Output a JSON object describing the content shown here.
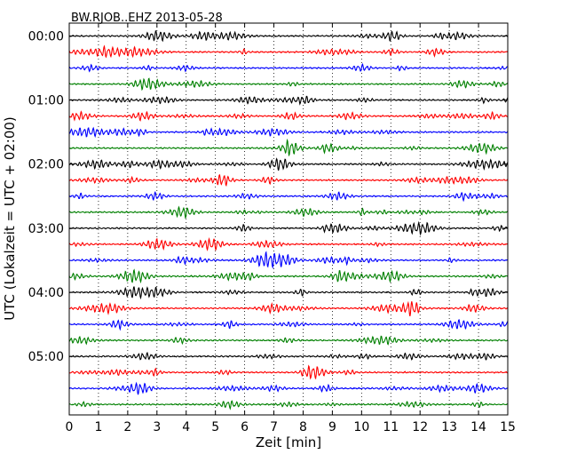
{
  "chart_data": {
    "type": "line",
    "title": "BW.RJOB..EHZ 2013-05-28",
    "xlabel": "Zeit  [min]",
    "ylabel": "UTC (Lokalzeit = UTC + 02:00)",
    "xlim": [
      0,
      15
    ],
    "x_ticks": [
      "0",
      "1",
      "2",
      "3",
      "4",
      "5",
      "6",
      "7",
      "8",
      "9",
      "10",
      "11",
      "12",
      "13",
      "14",
      "15"
    ],
    "hour_labels": [
      "00:00",
      "01:00",
      "02:00",
      "03:00",
      "04:00",
      "05:00"
    ],
    "traces_per_hour": 4,
    "trace_colors": [
      "#000000",
      "#ff0000",
      "#0000ff",
      "#008000"
    ],
    "grid": "vertical-dotted",
    "traces": [
      {
        "start": "00:00",
        "color": "#000000"
      },
      {
        "start": "00:15",
        "color": "#ff0000"
      },
      {
        "start": "00:30",
        "color": "#0000ff"
      },
      {
        "start": "00:45",
        "color": "#008000"
      },
      {
        "start": "01:00",
        "color": "#000000"
      },
      {
        "start": "01:15",
        "color": "#ff0000"
      },
      {
        "start": "01:30",
        "color": "#0000ff"
      },
      {
        "start": "01:45",
        "color": "#008000"
      },
      {
        "start": "02:00",
        "color": "#000000"
      },
      {
        "start": "02:15",
        "color": "#ff0000"
      },
      {
        "start": "02:30",
        "color": "#0000ff"
      },
      {
        "start": "02:45",
        "color": "#008000"
      },
      {
        "start": "03:00",
        "color": "#000000"
      },
      {
        "start": "03:15",
        "color": "#ff0000"
      },
      {
        "start": "03:30",
        "color": "#0000ff"
      },
      {
        "start": "03:45",
        "color": "#008000"
      },
      {
        "start": "04:00",
        "color": "#000000"
      },
      {
        "start": "04:15",
        "color": "#ff0000"
      },
      {
        "start": "04:30",
        "color": "#0000ff"
      },
      {
        "start": "04:45",
        "color": "#008000"
      },
      {
        "start": "05:00",
        "color": "#000000"
      },
      {
        "start": "05:15",
        "color": "#ff0000"
      },
      {
        "start": "05:30",
        "color": "#0000ff"
      },
      {
        "start": "05:45",
        "color": "#008000"
      }
    ]
  }
}
